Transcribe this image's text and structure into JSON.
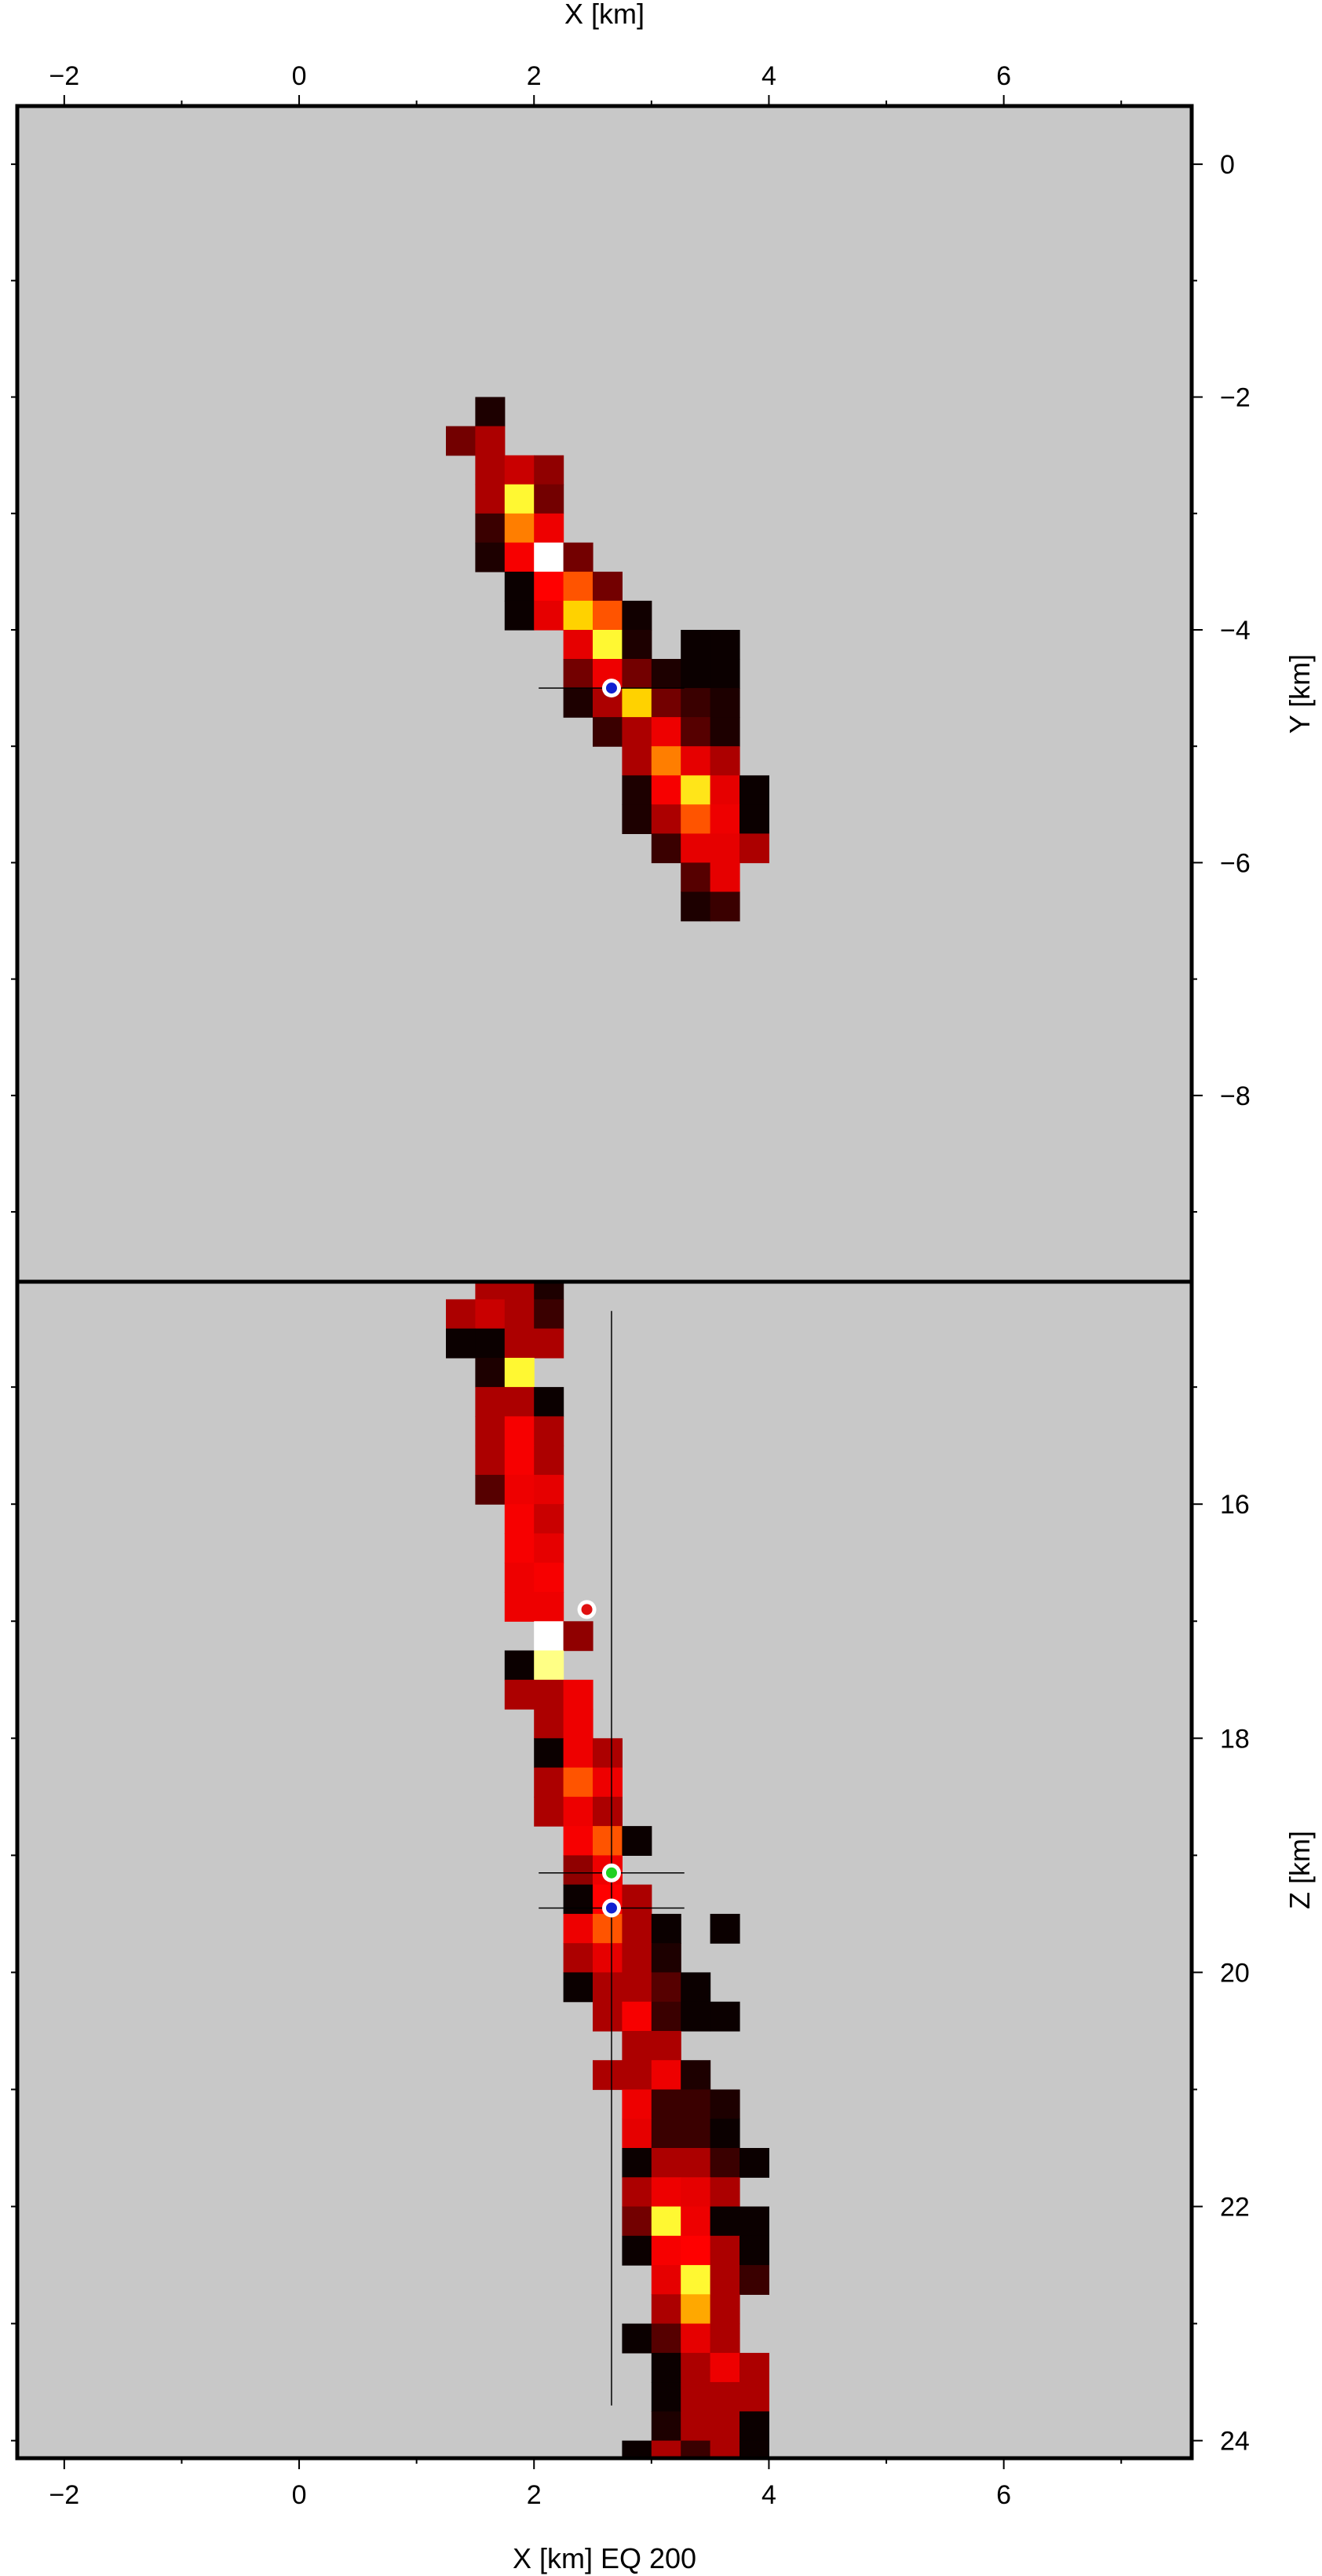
{
  "chart_data": [
    {
      "type": "heatmap",
      "panel": "map-view",
      "xlabel": "X [km]",
      "ylabel": "Y [km]",
      "xlim": [
        -2.4,
        7.6
      ],
      "ylim": [
        -9.6,
        0.5
      ],
      "x_ticks": [
        "−2",
        "0",
        "2",
        "4",
        "6"
      ],
      "x_tick_values": [
        -2,
        0,
        2,
        4,
        6
      ],
      "y_ticks": [
        "0",
        "−2",
        "−4",
        "−6",
        "−8"
      ],
      "y_tick_values": [
        0,
        -2,
        -4,
        -6,
        -8
      ],
      "background_color": "#c8c8c8",
      "cell_size_km": 0.25,
      "cells": [
        [
          1.625,
          -2.125,
          0.05
        ],
        [
          1.375,
          -2.375,
          0.2
        ],
        [
          1.625,
          -2.375,
          0.3
        ],
        [
          1.625,
          -2.625,
          0.3
        ],
        [
          1.875,
          -2.625,
          0.35
        ],
        [
          2.125,
          -2.625,
          0.25
        ],
        [
          1.625,
          -2.875,
          0.3
        ],
        [
          1.875,
          -2.875,
          0.9
        ],
        [
          2.125,
          -2.875,
          0.2
        ],
        [
          1.625,
          -3.125,
          0.1
        ],
        [
          1.875,
          -3.125,
          0.7
        ],
        [
          2.125,
          -3.125,
          0.45
        ],
        [
          1.625,
          -3.375,
          0.05
        ],
        [
          1.875,
          -3.375,
          0.5
        ],
        [
          2.125,
          -3.375,
          1.0
        ],
        [
          2.375,
          -3.375,
          0.2
        ],
        [
          1.875,
          -3.625,
          0.02
        ],
        [
          2.125,
          -3.625,
          0.55
        ],
        [
          2.375,
          -3.625,
          0.65
        ],
        [
          2.625,
          -3.625,
          0.2
        ],
        [
          1.875,
          -3.875,
          0.02
        ],
        [
          2.125,
          -3.875,
          0.4
        ],
        [
          2.375,
          -3.875,
          0.8
        ],
        [
          2.625,
          -3.875,
          0.65
        ],
        [
          2.875,
          -3.875,
          0.03
        ],
        [
          2.375,
          -4.125,
          0.4
        ],
        [
          2.625,
          -4.125,
          0.9
        ],
        [
          2.875,
          -4.125,
          0.05
        ],
        [
          3.375,
          -4.125,
          0.02
        ],
        [
          3.625,
          -4.125,
          0.02
        ],
        [
          2.375,
          -4.375,
          0.2
        ],
        [
          2.625,
          -4.375,
          0.45
        ],
        [
          2.875,
          -4.375,
          0.2
        ],
        [
          3.125,
          -4.375,
          0.05
        ],
        [
          3.375,
          -4.375,
          0.02
        ],
        [
          3.625,
          -4.375,
          0.02
        ],
        [
          2.375,
          -4.625,
          0.05
        ],
        [
          2.625,
          -4.625,
          0.3
        ],
        [
          2.875,
          -4.625,
          0.8
        ],
        [
          3.125,
          -4.625,
          0.2
        ],
        [
          3.375,
          -4.625,
          0.1
        ],
        [
          3.625,
          -4.625,
          0.05
        ],
        [
          2.625,
          -4.875,
          0.1
        ],
        [
          2.875,
          -4.875,
          0.3
        ],
        [
          3.125,
          -4.875,
          0.45
        ],
        [
          3.375,
          -4.875,
          0.15
        ],
        [
          3.625,
          -4.875,
          0.05
        ],
        [
          2.875,
          -5.125,
          0.3
        ],
        [
          3.125,
          -5.125,
          0.7
        ],
        [
          3.375,
          -5.125,
          0.4
        ],
        [
          3.625,
          -5.125,
          0.3
        ],
        [
          2.875,
          -5.375,
          0.05
        ],
        [
          3.125,
          -5.375,
          0.5
        ],
        [
          3.375,
          -5.375,
          0.85
        ],
        [
          3.625,
          -5.375,
          0.4
        ],
        [
          3.875,
          -5.375,
          0.02
        ],
        [
          2.875,
          -5.625,
          0.05
        ],
        [
          3.125,
          -5.625,
          0.3
        ],
        [
          3.375,
          -5.625,
          0.65
        ],
        [
          3.625,
          -5.625,
          0.45
        ],
        [
          3.875,
          -5.625,
          0.02
        ],
        [
          3.125,
          -5.875,
          0.1
        ],
        [
          3.375,
          -5.875,
          0.4
        ],
        [
          3.625,
          -5.875,
          0.4
        ],
        [
          3.875,
          -5.875,
          0.3
        ],
        [
          3.375,
          -6.125,
          0.15
        ],
        [
          3.625,
          -6.125,
          0.4
        ],
        [
          3.375,
          -6.375,
          0.05
        ],
        [
          3.625,
          -6.375,
          0.1
        ]
      ],
      "markers": [
        {
          "x": 2.66,
          "y": -4.5,
          "color": "#1020d0",
          "xerr": 0.62,
          "yerr": 0.06
        }
      ]
    },
    {
      "type": "heatmap",
      "panel": "depth-section",
      "xlabel": "X [km] EQ 200",
      "ylabel": "Z [km]",
      "xlim": [
        -2.4,
        7.6
      ],
      "ylim": [
        24.15,
        14.1
      ],
      "x_ticks": [
        "−2",
        "0",
        "2",
        "4",
        "6"
      ],
      "x_tick_values": [
        -2,
        0,
        2,
        4,
        6
      ],
      "y_ticks": [
        "16",
        "18",
        "20",
        "22",
        "24"
      ],
      "y_tick_values": [
        16,
        18,
        20,
        22,
        24
      ],
      "background_color": "#c8c8c8",
      "cell_size_km": 0.25,
      "cells": [
        [
          1.625,
          14.125,
          0.3
        ],
        [
          1.875,
          14.125,
          0.3
        ],
        [
          2.125,
          14.125,
          0.05
        ],
        [
          1.375,
          14.375,
          0.3
        ],
        [
          1.625,
          14.375,
          0.35
        ],
        [
          1.875,
          14.375,
          0.3
        ],
        [
          2.125,
          14.375,
          0.1
        ],
        [
          1.375,
          14.625,
          0.02
        ],
        [
          1.625,
          14.625,
          0.02
        ],
        [
          1.875,
          14.625,
          0.3
        ],
        [
          2.125,
          14.625,
          0.3
        ],
        [
          1.625,
          14.875,
          0.05
        ],
        [
          1.875,
          14.875,
          0.9
        ],
        [
          1.625,
          15.125,
          0.3
        ],
        [
          1.875,
          15.125,
          0.3
        ],
        [
          2.125,
          15.125,
          0.02
        ],
        [
          1.625,
          15.375,
          0.3
        ],
        [
          1.875,
          15.375,
          0.5
        ],
        [
          2.125,
          15.375,
          0.3
        ],
        [
          1.625,
          15.625,
          0.3
        ],
        [
          1.875,
          15.625,
          0.5
        ],
        [
          2.125,
          15.625,
          0.3
        ],
        [
          1.625,
          15.875,
          0.15
        ],
        [
          1.875,
          15.875,
          0.45
        ],
        [
          2.125,
          15.875,
          0.4
        ],
        [
          1.875,
          16.125,
          0.5
        ],
        [
          2.125,
          16.125,
          0.35
        ],
        [
          1.875,
          16.375,
          0.5
        ],
        [
          2.125,
          16.375,
          0.4
        ],
        [
          1.875,
          16.625,
          0.45
        ],
        [
          2.125,
          16.625,
          0.5
        ],
        [
          1.875,
          16.875,
          0.45
        ],
        [
          2.125,
          16.875,
          0.45
        ],
        [
          2.125,
          17.125,
          1.0
        ],
        [
          2.375,
          17.125,
          0.25
        ],
        [
          1.875,
          17.375,
          0.02
        ],
        [
          2.125,
          17.375,
          0.95
        ],
        [
          1.875,
          17.625,
          0.3
        ],
        [
          2.125,
          17.625,
          0.3
        ],
        [
          2.375,
          17.625,
          0.45
        ],
        [
          2.125,
          17.875,
          0.3
        ],
        [
          2.375,
          17.875,
          0.45
        ],
        [
          2.125,
          18.125,
          0.02
        ],
        [
          2.375,
          18.125,
          0.45
        ],
        [
          2.625,
          18.125,
          0.3
        ],
        [
          2.125,
          18.375,
          0.3
        ],
        [
          2.375,
          18.375,
          0.65
        ],
        [
          2.625,
          18.375,
          0.45
        ],
        [
          2.125,
          18.625,
          0.3
        ],
        [
          2.375,
          18.625,
          0.45
        ],
        [
          2.625,
          18.625,
          0.3
        ],
        [
          2.375,
          18.875,
          0.5
        ],
        [
          2.625,
          18.875,
          0.65
        ],
        [
          2.875,
          18.875,
          0.02
        ],
        [
          2.375,
          19.125,
          0.25
        ],
        [
          2.625,
          19.125,
          0.45
        ],
        [
          2.375,
          19.375,
          0.02
        ],
        [
          2.625,
          19.375,
          0.55
        ],
        [
          2.875,
          19.375,
          0.3
        ],
        [
          2.375,
          19.625,
          0.45
        ],
        [
          2.625,
          19.625,
          0.65
        ],
        [
          2.875,
          19.625,
          0.3
        ],
        [
          3.125,
          19.625,
          0.02
        ],
        [
          3.625,
          19.625,
          0.02
        ],
        [
          2.375,
          19.875,
          0.3
        ],
        [
          2.625,
          19.875,
          0.4
        ],
        [
          2.875,
          19.875,
          0.3
        ],
        [
          3.125,
          19.875,
          0.05
        ],
        [
          2.375,
          20.125,
          0.02
        ],
        [
          2.625,
          20.125,
          0.3
        ],
        [
          2.875,
          20.125,
          0.3
        ],
        [
          3.125,
          20.125,
          0.15
        ],
        [
          3.375,
          20.125,
          0.02
        ],
        [
          2.625,
          20.375,
          0.3
        ],
        [
          2.875,
          20.375,
          0.5
        ],
        [
          3.125,
          20.375,
          0.1
        ],
        [
          3.375,
          20.375,
          0.02
        ],
        [
          3.625,
          20.375,
          0.02
        ],
        [
          2.875,
          20.625,
          0.3
        ],
        [
          3.125,
          20.625,
          0.3
        ],
        [
          2.625,
          20.875,
          0.3
        ],
        [
          2.875,
          20.875,
          0.3
        ],
        [
          3.125,
          20.875,
          0.45
        ],
        [
          3.375,
          20.875,
          0.05
        ],
        [
          2.875,
          21.125,
          0.45
        ],
        [
          3.125,
          21.125,
          0.1
        ],
        [
          3.375,
          21.125,
          0.1
        ],
        [
          3.625,
          21.125,
          0.05
        ],
        [
          2.875,
          21.375,
          0.4
        ],
        [
          3.125,
          21.375,
          0.1
        ],
        [
          3.375,
          21.375,
          0.1
        ],
        [
          3.625,
          21.375,
          0.02
        ],
        [
          2.875,
          21.625,
          0.02
        ],
        [
          3.125,
          21.625,
          0.3
        ],
        [
          3.375,
          21.625,
          0.3
        ],
        [
          3.625,
          21.625,
          0.1
        ],
        [
          3.875,
          21.625,
          0.02
        ],
        [
          2.875,
          21.875,
          0.3
        ],
        [
          3.125,
          21.875,
          0.45
        ],
        [
          3.375,
          21.875,
          0.4
        ],
        [
          3.625,
          21.875,
          0.3
        ],
        [
          2.875,
          22.125,
          0.2
        ],
        [
          3.125,
          22.125,
          0.9
        ],
        [
          3.375,
          22.125,
          0.45
        ],
        [
          3.625,
          22.125,
          0.02
        ],
        [
          3.875,
          22.125,
          0.02
        ],
        [
          2.875,
          22.375,
          0.02
        ],
        [
          3.125,
          22.375,
          0.5
        ],
        [
          3.375,
          22.375,
          0.55
        ],
        [
          3.625,
          22.375,
          0.3
        ],
        [
          3.875,
          22.375,
          0.02
        ],
        [
          3.125,
          22.625,
          0.4
        ],
        [
          3.375,
          22.625,
          0.9
        ],
        [
          3.625,
          22.625,
          0.3
        ],
        [
          3.875,
          22.625,
          0.1
        ],
        [
          3.125,
          22.875,
          0.3
        ],
        [
          3.375,
          22.875,
          0.75
        ],
        [
          3.625,
          22.875,
          0.3
        ],
        [
          2.875,
          23.125,
          0.02
        ],
        [
          3.125,
          23.125,
          0.15
        ],
        [
          3.375,
          23.125,
          0.4
        ],
        [
          3.625,
          23.125,
          0.3
        ],
        [
          3.125,
          23.375,
          0.02
        ],
        [
          3.375,
          23.375,
          0.3
        ],
        [
          3.625,
          23.375,
          0.45
        ],
        [
          3.875,
          23.375,
          0.3
        ],
        [
          3.125,
          23.625,
          0.02
        ],
        [
          3.375,
          23.625,
          0.3
        ],
        [
          3.625,
          23.625,
          0.3
        ],
        [
          3.875,
          23.625,
          0.3
        ],
        [
          3.125,
          23.875,
          0.05
        ],
        [
          3.375,
          23.875,
          0.3
        ],
        [
          3.625,
          23.875,
          0.3
        ],
        [
          3.875,
          23.875,
          0.02
        ],
        [
          2.875,
          24.125,
          0.02
        ],
        [
          3.125,
          24.125,
          0.3
        ],
        [
          3.375,
          24.125,
          0.1
        ],
        [
          3.625,
          24.125,
          0.3
        ],
        [
          3.875,
          24.125,
          0.02
        ]
      ],
      "markers": [
        {
          "x": 2.45,
          "y": 16.9,
          "color": "#e01010"
        },
        {
          "x": 2.66,
          "y": 19.15,
          "color": "#20d020",
          "xerr": 0.62,
          "yerr": 0.06
        },
        {
          "x": 2.66,
          "y": 19.45,
          "color": "#1020d0",
          "xerr": 0.62,
          "yerr": 0.06
        }
      ],
      "vertical_error_bar": {
        "x": 2.66,
        "y_from": 14.35,
        "y_to": 23.7
      }
    }
  ]
}
